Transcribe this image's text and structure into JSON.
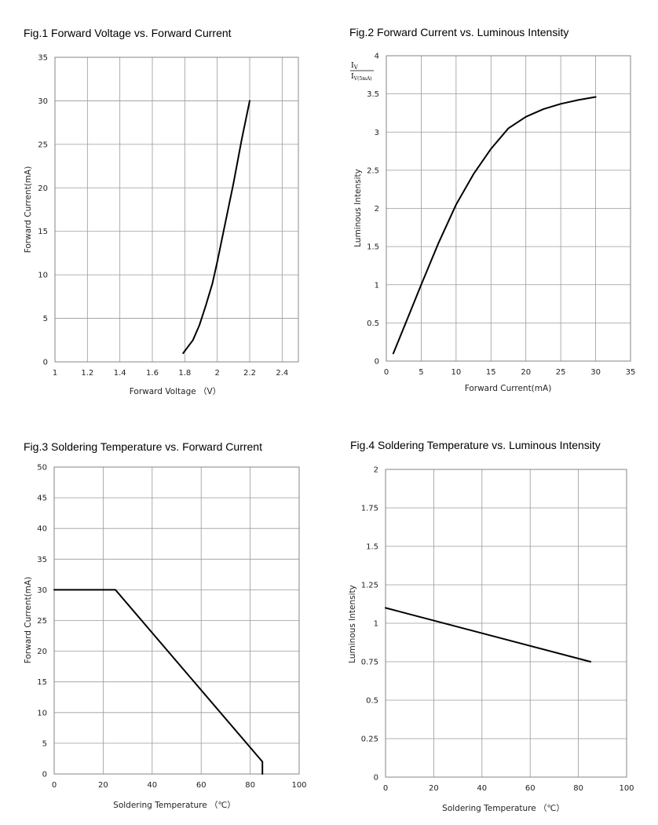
{
  "chart_data": [
    {
      "type": "line",
      "title": "Fig.1 Forward Voltage vs. Forward Current",
      "xlabel": "Forward Voltage （V）",
      "ylabel": "Forward Current(mA)",
      "xlim": [
        1,
        2.5
      ],
      "ylim": [
        0,
        35
      ],
      "xticks": [
        1,
        1.2,
        1.4,
        1.6,
        1.8,
        2,
        2.2,
        2.4
      ],
      "xtick_labels": [
        "1",
        "1.2",
        "1.4",
        "1.6",
        "1.8",
        "2",
        "2.2",
        "2.4"
      ],
      "yticks": [
        0,
        5,
        10,
        15,
        20,
        25,
        30,
        35
      ],
      "ytick_labels": [
        "0",
        "5",
        "10",
        "15",
        "20",
        "25",
        "30",
        "35"
      ],
      "grid": true,
      "series": [
        {
          "x": [
            1.79,
            1.85,
            1.89,
            1.93,
            1.97,
            2.0,
            2.05,
            2.1,
            2.15,
            2.2
          ],
          "y": [
            1,
            2.5,
            4.2,
            6.5,
            9,
            11.5,
            16,
            20.5,
            25.5,
            30
          ]
        }
      ]
    },
    {
      "type": "line",
      "title": "Fig.2  Forward Current  vs.  Luminous Intensity",
      "xlabel": "Forward Current(mA)",
      "ylabel": "Luminous Intensity",
      "ratio_label": {
        "numerator": "I",
        "numerator_sub": "V",
        "denominator": "I",
        "denominator_sub": "V(5mA)"
      },
      "xlim": [
        0,
        35
      ],
      "ylim": [
        0,
        4
      ],
      "xticks": [
        0,
        5,
        10,
        15,
        20,
        25,
        30,
        35
      ],
      "xtick_labels": [
        "0",
        "5",
        "10",
        "15",
        "20",
        "25",
        "30",
        "35"
      ],
      "yticks": [
        0,
        0.5,
        1,
        1.5,
        2,
        2.5,
        3,
        3.5,
        4
      ],
      "ytick_labels": [
        "0",
        "0.5",
        "1",
        "1.5",
        "2",
        "2.5",
        "3",
        "3.5",
        "4"
      ],
      "grid": true,
      "series": [
        {
          "x": [
            1,
            3,
            5,
            7.5,
            10,
            12.5,
            15,
            17.5,
            20,
            22.5,
            25,
            27.5,
            30
          ],
          "y": [
            0.1,
            0.55,
            1.0,
            1.55,
            2.05,
            2.45,
            2.78,
            3.05,
            3.2,
            3.3,
            3.37,
            3.42,
            3.46
          ]
        }
      ]
    },
    {
      "type": "line",
      "title": "Fig.3  Soldering Temperature vs. Forward Current",
      "xlabel": "Soldering Temperature （℃）",
      "ylabel": "Forward Current(mA)",
      "xlim": [
        0,
        100
      ],
      "ylim": [
        0,
        50
      ],
      "xticks": [
        0,
        20,
        40,
        60,
        80,
        100
      ],
      "xtick_labels": [
        "0",
        "20",
        "40",
        "60",
        "80",
        "100"
      ],
      "yticks": [
        0,
        5,
        10,
        15,
        20,
        25,
        30,
        35,
        40,
        45,
        50
      ],
      "ytick_labels": [
        "0",
        "5",
        "10",
        "15",
        "20",
        "25",
        "30",
        "35",
        "40",
        "45",
        "50"
      ],
      "grid": true,
      "series": [
        {
          "x": [
            0,
            25,
            85,
            85
          ],
          "y": [
            30,
            30,
            2,
            0
          ]
        }
      ]
    },
    {
      "type": "line",
      "title": "Fig.4  Soldering Temperature vs. Luminous Intensity",
      "xlabel": "Soldering Temperature （℃）",
      "ylabel": "Luminous Intensity",
      "xlim": [
        0,
        100
      ],
      "ylim": [
        0,
        2
      ],
      "xticks": [
        0,
        20,
        40,
        60,
        80,
        100
      ],
      "xtick_labels": [
        "0",
        "20",
        "40",
        "60",
        "80",
        "100"
      ],
      "yticks": [
        0,
        0.25,
        0.5,
        0.75,
        1,
        1.25,
        1.5,
        1.75,
        2
      ],
      "ytick_labels": [
        "0",
        "0.25",
        "0.5",
        "0.75",
        "1",
        "1.25",
        "1.5",
        "1.75",
        "2"
      ],
      "grid": true,
      "series": [
        {
          "x": [
            0,
            85
          ],
          "y": [
            1.1,
            0.75
          ]
        }
      ]
    }
  ]
}
